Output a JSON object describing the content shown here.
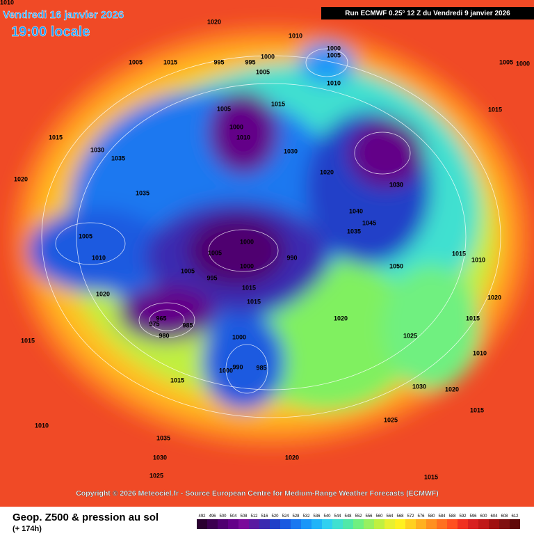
{
  "header": {
    "date": "Vendredi 16 janvier 2026",
    "time": "19:00 locale",
    "run": "Run ECMWF 0.25° 12 Z du Vendredi 9 janvier 2026"
  },
  "map": {
    "pressure_labels": [
      "1010",
      "1020",
      "1010",
      "1005",
      "1015",
      "995",
      "1000",
      "1005",
      "1000",
      "995",
      "1005",
      "1010",
      "1015",
      "1005",
      "1000",
      "1010",
      "1030",
      "1030",
      "1015",
      "1020",
      "1035",
      "1020",
      "1030",
      "1035",
      "1005",
      "1000",
      "1005",
      "1005",
      "995",
      "1000",
      "990",
      "1015",
      "1010",
      "1015",
      "975",
      "965",
      "980",
      "985",
      "990",
      "1000",
      "985",
      "1000",
      "1015",
      "1020",
      "1040",
      "1045",
      "1050",
      "1035",
      "1030",
      "1025",
      "1015",
      "1010",
      "1020",
      "1015",
      "1020",
      "1030",
      "1015",
      "1000",
      "1015",
      "1035",
      "1030",
      "1025",
      "1010",
      "1020",
      "1025",
      "1015",
      "1010",
      "1005",
      "1015",
      "1020"
    ]
  },
  "footer": {
    "copyright": "Copyright © 2026 Meteociel.fr - Source European Centre for Medium-Range Weather Forecasts (ECMWF)",
    "title": "Geop. Z500 & pression au sol",
    "lead": "(+ 174h)"
  },
  "colorbar": {
    "values": [
      492,
      496,
      500,
      504,
      508,
      512,
      516,
      520,
      524,
      528,
      532,
      536,
      540,
      544,
      548,
      552,
      556,
      560,
      564,
      568,
      572,
      576,
      580,
      584,
      588,
      592,
      596,
      600,
      604,
      608,
      612
    ],
    "colors": [
      "#2a0030",
      "#3c0050",
      "#500070",
      "#640088",
      "#7a0a9a",
      "#5a1aa0",
      "#3a2ab0",
      "#2040c8",
      "#1a5ae0",
      "#1a78f0",
      "#1a96f8",
      "#20b4f8",
      "#30d0f0",
      "#40e0d0",
      "#50e8a8",
      "#70f080",
      "#98f060",
      "#c0f040",
      "#e8f030",
      "#fff020",
      "#ffd020",
      "#ffb020",
      "#ff9020",
      "#ff7020",
      "#ff5020",
      "#f03020",
      "#d82020",
      "#c01818",
      "#a01010",
      "#801010",
      "#600808"
    ]
  }
}
